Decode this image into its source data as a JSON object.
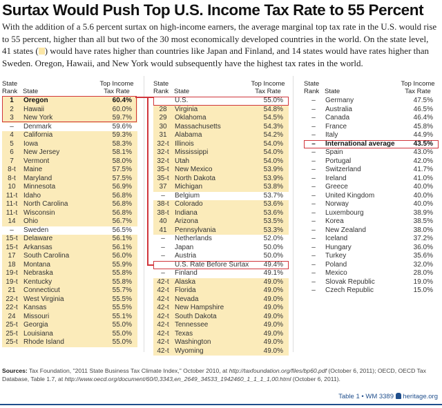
{
  "title": "Surtax Would Push Top U.S. Income Tax Rate to 55 Percent",
  "intro_before_swatch": "With the addition of a 5.6 percent surtax on high-income earners, the average marginal top tax rate in the U.S. would rise to 55 percent, higher than all but two of the 30 most economically developed countries in the world. On the state level, 41 states (",
  "intro_after_swatch": ") would have rates higher than countries like Japan and Finland, and 14 states would have rates higher than Sweden. Oregon, Hawaii, and New York would subsequently have the highest tax rates in the world.",
  "colors": {
    "highlight": "#fbebba",
    "box": "#d0343a",
    "brand": "#1f4e8c"
  },
  "headers": {
    "rank": "State Rank",
    "state": "State",
    "rate": "Top Income Tax Rate"
  },
  "columns": [
    [
      {
        "rank": "1",
        "name": "Oregon",
        "rate": "60.4%",
        "hl": true,
        "bold": true
      },
      {
        "rank": "2",
        "name": "Hawaii",
        "rate": "60.0%",
        "hl": true
      },
      {
        "rank": "3",
        "name": "New York",
        "rate": "59.7%",
        "hl": true
      },
      {
        "rank": "–",
        "name": "Denmark",
        "rate": "59.6%"
      },
      {
        "rank": "4",
        "name": "California",
        "rate": "59.3%",
        "hl": true
      },
      {
        "rank": "5",
        "name": "Iowa",
        "rate": "58.3%",
        "hl": true
      },
      {
        "rank": "6",
        "name": "New Jersey",
        "rate": "58.1%",
        "hl": true
      },
      {
        "rank": "7",
        "name": "Vermont",
        "rate": "58.0%",
        "hl": true
      },
      {
        "rank": "8-t",
        "name": "Maine",
        "rate": "57.5%",
        "hl": true
      },
      {
        "rank": "8-t",
        "name": "Maryland",
        "rate": "57.5%",
        "hl": true
      },
      {
        "rank": "10",
        "name": "Minnesota",
        "rate": "56.9%",
        "hl": true
      },
      {
        "rank": "11-t",
        "name": "Idaho",
        "rate": "56.8%",
        "hl": true
      },
      {
        "rank": "11-t",
        "name": "North Carolina",
        "rate": "56.8%",
        "hl": true
      },
      {
        "rank": "11-t",
        "name": "Wisconsin",
        "rate": "56.8%",
        "hl": true
      },
      {
        "rank": "14",
        "name": "Ohio",
        "rate": "56.7%",
        "hl": true
      },
      {
        "rank": "–",
        "name": "Sweden",
        "rate": "56.5%"
      },
      {
        "rank": "15-t",
        "name": "Delaware",
        "rate": "56.1%",
        "hl": true
      },
      {
        "rank": "15-t",
        "name": "Arkansas",
        "rate": "56.1%",
        "hl": true
      },
      {
        "rank": "17",
        "name": "South Carolina",
        "rate": "56.0%",
        "hl": true
      },
      {
        "rank": "18",
        "name": "Montana",
        "rate": "55.9%",
        "hl": true
      },
      {
        "rank": "19-t",
        "name": "Nebraska",
        "rate": "55.8%",
        "hl": true
      },
      {
        "rank": "19-t",
        "name": "Kentucky",
        "rate": "55.8%",
        "hl": true
      },
      {
        "rank": "21",
        "name": "Connecticut",
        "rate": "55.7%",
        "hl": true
      },
      {
        "rank": "22-t",
        "name": "West Virginia",
        "rate": "55.5%",
        "hl": true
      },
      {
        "rank": "22-t",
        "name": "Kansas",
        "rate": "55.5%",
        "hl": true
      },
      {
        "rank": "24",
        "name": "Missouri",
        "rate": "55.1%",
        "hl": true
      },
      {
        "rank": "25-t",
        "name": "Georgia",
        "rate": "55.0%",
        "hl": true
      },
      {
        "rank": "25-t",
        "name": "Louisiana",
        "rate": "55.0%",
        "hl": true
      },
      {
        "rank": "25-t",
        "name": "Rhode Island",
        "rate": "55.0%",
        "hl": true
      }
    ],
    [
      {
        "rank": "",
        "name": "U.S.",
        "rate": "55.0%",
        "boxed": true
      },
      {
        "rank": "28",
        "name": "Virginia",
        "rate": "54.8%",
        "hl": true
      },
      {
        "rank": "29",
        "name": "Oklahoma",
        "rate": "54.5%",
        "hl": true
      },
      {
        "rank": "30",
        "name": "Massachusetts",
        "rate": "54.3%",
        "hl": true
      },
      {
        "rank": "31",
        "name": "Alabama",
        "rate": "54.2%",
        "hl": true
      },
      {
        "rank": "32-t",
        "name": "Illinois",
        "rate": "54.0%",
        "hl": true
      },
      {
        "rank": "32-t",
        "name": "Mississippi",
        "rate": "54.0%",
        "hl": true
      },
      {
        "rank": "32-t",
        "name": "Utah",
        "rate": "54.0%",
        "hl": true
      },
      {
        "rank": "35-t",
        "name": "New Mexico",
        "rate": "53.9%",
        "hl": true
      },
      {
        "rank": "35-t",
        "name": "North Dakota",
        "rate": "53.9%",
        "hl": true
      },
      {
        "rank": "37",
        "name": "Michigan",
        "rate": "53.8%",
        "hl": true
      },
      {
        "rank": "–",
        "name": "Belgium",
        "rate": "53.7%"
      },
      {
        "rank": "38-t",
        "name": "Colorado",
        "rate": "53.6%",
        "hl": true
      },
      {
        "rank": "38-t",
        "name": "Indiana",
        "rate": "53.6%",
        "hl": true
      },
      {
        "rank": "40",
        "name": "Arizona",
        "rate": "53.5%",
        "hl": true
      },
      {
        "rank": "41",
        "name": "Pennsylvania",
        "rate": "53.3%",
        "hl": true
      },
      {
        "rank": "–",
        "name": "Netherlands",
        "rate": "52.0%"
      },
      {
        "rank": "–",
        "name": "Japan",
        "rate": "50.0%"
      },
      {
        "rank": "–",
        "name": "Austria",
        "rate": "50.0%"
      },
      {
        "rank": "",
        "name": "U.S. Rate Before Surtax",
        "rate": "49.4%",
        "boxed": true
      },
      {
        "rank": "–",
        "name": "Finland",
        "rate": "49.1%"
      },
      {
        "rank": "42-t",
        "name": "Alaska",
        "rate": "49.0%",
        "hl": true
      },
      {
        "rank": "42-t",
        "name": "Florida",
        "rate": "49.0%",
        "hl": true
      },
      {
        "rank": "42-t",
        "name": "Nevada",
        "rate": "49.0%",
        "hl": true
      },
      {
        "rank": "42-t",
        "name": "New Hampshire",
        "rate": "49.0%",
        "hl": true
      },
      {
        "rank": "42-t",
        "name": "South Dakota",
        "rate": "49.0%",
        "hl": true
      },
      {
        "rank": "42-t",
        "name": "Tennessee",
        "rate": "49.0%",
        "hl": true
      },
      {
        "rank": "42-t",
        "name": "Texas",
        "rate": "49.0%",
        "hl": true
      },
      {
        "rank": "42-t",
        "name": "Washington",
        "rate": "49.0%",
        "hl": true
      },
      {
        "rank": "42-t",
        "name": "Wyoming",
        "rate": "49.0%",
        "hl": true
      }
    ],
    [
      {
        "rank": "–",
        "name": "Germany",
        "rate": "47.5%"
      },
      {
        "rank": "–",
        "name": "Australia",
        "rate": "46.5%"
      },
      {
        "rank": "–",
        "name": "Canada",
        "rate": "46.4%"
      },
      {
        "rank": "–",
        "name": "France",
        "rate": "45.8%"
      },
      {
        "rank": "–",
        "name": "Italy",
        "rate": "44.9%"
      },
      {
        "rank": "–",
        "name": "International average",
        "rate": "43.5%",
        "boxed": true,
        "bold": true
      },
      {
        "rank": "–",
        "name": "Spain",
        "rate": "43.0%"
      },
      {
        "rank": "–",
        "name": "Portugal",
        "rate": "42.0%"
      },
      {
        "rank": "–",
        "name": "Switzerland",
        "rate": "41.7%"
      },
      {
        "rank": "–",
        "name": "Ireland",
        "rate": "41.0%"
      },
      {
        "rank": "–",
        "name": "Greece",
        "rate": "40.0%"
      },
      {
        "rank": "–",
        "name": "United Kingdom",
        "rate": "40.0%"
      },
      {
        "rank": "–",
        "name": "Norway",
        "rate": "40.0%"
      },
      {
        "rank": "–",
        "name": "Luxembourg",
        "rate": "38.9%"
      },
      {
        "rank": "–",
        "name": "Korea",
        "rate": "38.5%"
      },
      {
        "rank": "–",
        "name": "New Zealand",
        "rate": "38.0%"
      },
      {
        "rank": "–",
        "name": "Iceland",
        "rate": "37.2%"
      },
      {
        "rank": "–",
        "name": "Hungary",
        "rate": "36.0%"
      },
      {
        "rank": "–",
        "name": "Turkey",
        "rate": "35.6%"
      },
      {
        "rank": "–",
        "name": "Poland",
        "rate": "32.0%"
      },
      {
        "rank": "–",
        "name": "Mexico",
        "rate": "28.0%"
      },
      {
        "rank": "–",
        "name": "Slovak Republic",
        "rate": "19.0%"
      },
      {
        "rank": "–",
        "name": "Czech Republic",
        "rate": "15.0%"
      }
    ]
  ],
  "sources": {
    "label": "Sources:",
    "text1": " Tax Foundation, \"2011 State Business Tax Climate Index,\" October 2010, at ",
    "url1": "http://taxfoundation.org/files/bp60.pdf",
    "text2": " (October 6, 2011); OECD, OECD Tax Database, Table 1.7, at ",
    "url2": "http://www.oecd.org/document/60/0,3343,en_2649_34533_1942460_1_1_1_1,00.html",
    "text3": " (October 6, 2011)."
  },
  "footer": {
    "table_ref": "Table 1 • WM 3389",
    "site": "heritage.org",
    "logo_icon": "liberty-bell-icon"
  }
}
